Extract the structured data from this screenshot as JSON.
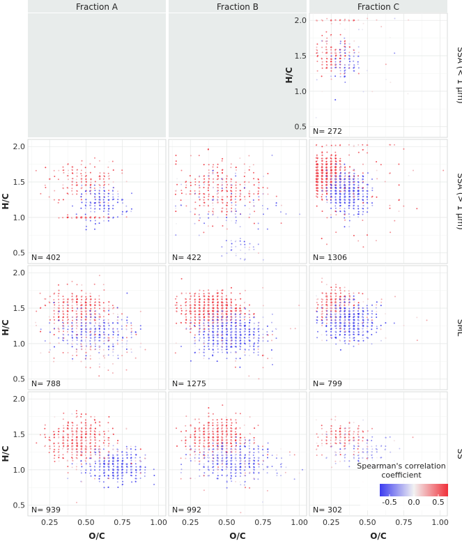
{
  "chart_data": {
    "type": "scatter",
    "title": "",
    "xlabel": "O/C",
    "ylabel": "H/C",
    "xlim": [
      0.1,
      1.05
    ],
    "ylim": [
      0.35,
      2.1
    ],
    "xticks": [
      0.25,
      0.5,
      0.75,
      1.0
    ],
    "xtick_labels": [
      "0.25",
      "0.50",
      "0.75",
      "1.00"
    ],
    "yticks": [
      0.5,
      1.0,
      1.5,
      2.0
    ],
    "ytick_labels": [
      "0.5",
      "1.0",
      "1.5",
      "2.0"
    ],
    "grid": true,
    "columns": [
      "Fraction A",
      "Fraction B",
      "Fraction C"
    ],
    "rows": [
      "SSA (< 1 µm)",
      "SSA (> 1 µm)",
      "SML",
      "SS"
    ],
    "legend": {
      "title_line1": "Spearman's correlation",
      "title_line2": "coefficient",
      "ticks": [
        -0.5,
        0.0,
        0.5
      ],
      "tick_labels": [
        "-0.5",
        "0.0",
        "0.5"
      ],
      "low_color": "#3b3bf0",
      "mid_color": "#f2f2f2",
      "high_color": "#f0303a",
      "placement": "bottom-right"
    },
    "panels": [
      {
        "row": 0,
        "col": 0,
        "empty": true
      },
      {
        "row": 0,
        "col": 1,
        "empty": true
      },
      {
        "row": 0,
        "col": 2,
        "n_label": "N= 272",
        "n": 272,
        "clusters": [
          {
            "count": 130,
            "cx": 0.26,
            "cy": 1.5,
            "sx": 0.06,
            "sy": 0.13,
            "cval": 0.5
          },
          {
            "count": 70,
            "cx": 0.34,
            "cy": 1.38,
            "sx": 0.06,
            "sy": 0.15,
            "cval": -0.45
          },
          {
            "count": 36,
            "cx": 0.42,
            "cy": 1.5,
            "sx": 0.24,
            "sy": 0.35,
            "cval": 0.1
          },
          {
            "count": 36,
            "cx": 0.3,
            "cy": 2.0,
            "sx": 0.08,
            "sy": 0.01,
            "cval": 0.35
          }
        ]
      },
      {
        "row": 1,
        "col": 0,
        "n_label": "N= 402",
        "n": 402,
        "clusters": [
          {
            "count": 190,
            "cx": 0.48,
            "cy": 1.5,
            "sx": 0.12,
            "sy": 0.15,
            "cval": 0.4
          },
          {
            "count": 150,
            "cx": 0.6,
            "cy": 1.2,
            "sx": 0.08,
            "sy": 0.12,
            "cval": -0.5
          },
          {
            "count": 62,
            "cx": 0.5,
            "cy": 1.0,
            "sx": 0.1,
            "sy": 0.01,
            "cval": 0.5
          }
        ]
      },
      {
        "row": 1,
        "col": 1,
        "n_label": "N= 422",
        "n": 422,
        "clusters": [
          {
            "count": 300,
            "cx": 0.45,
            "cy": 1.4,
            "sx": 0.15,
            "sy": 0.22,
            "cval": 0.5
          },
          {
            "count": 90,
            "cx": 0.5,
            "cy": 1.2,
            "sx": 0.2,
            "sy": 0.25,
            "cval": -0.35
          },
          {
            "count": 32,
            "cx": 0.6,
            "cy": 0.55,
            "sx": 0.07,
            "sy": 0.12,
            "cval": -0.3
          }
        ]
      },
      {
        "row": 1,
        "col": 2,
        "n_label": "N= 1306",
        "n": 1306,
        "clusters": [
          {
            "count": 700,
            "cx": 0.22,
            "cy": 1.6,
            "sx": 0.06,
            "sy": 0.12,
            "cval": 0.6
          },
          {
            "count": 500,
            "cx": 0.37,
            "cy": 1.35,
            "sx": 0.07,
            "sy": 0.14,
            "cval": -0.55
          },
          {
            "count": 106,
            "cx": 0.4,
            "cy": 1.5,
            "sx": 0.2,
            "sy": 0.45,
            "cval": 0.45
          }
        ]
      },
      {
        "row": 2,
        "col": 0,
        "n_label": "N= 788",
        "n": 788,
        "clusters": [
          {
            "count": 380,
            "cx": 0.45,
            "cy": 1.45,
            "sx": 0.12,
            "sy": 0.16,
            "cval": 0.45
          },
          {
            "count": 300,
            "cx": 0.55,
            "cy": 1.15,
            "sx": 0.12,
            "sy": 0.13,
            "cval": -0.45
          },
          {
            "count": 108,
            "cx": 0.6,
            "cy": 1.0,
            "sx": 0.15,
            "sy": 0.2,
            "cval": 0.2
          }
        ]
      },
      {
        "row": 2,
        "col": 1,
        "n_label": "N= 1275",
        "n": 1275,
        "clusters": [
          {
            "count": 650,
            "cx": 0.4,
            "cy": 1.47,
            "sx": 0.1,
            "sy": 0.12,
            "cval": 0.55
          },
          {
            "count": 560,
            "cx": 0.52,
            "cy": 1.12,
            "sx": 0.12,
            "sy": 0.14,
            "cval": -0.5
          },
          {
            "count": 65,
            "cx": 0.55,
            "cy": 1.2,
            "sx": 0.2,
            "sy": 0.3,
            "cval": 0.3
          }
        ]
      },
      {
        "row": 2,
        "col": 2,
        "n_label": "N= 799",
        "n": 799,
        "clusters": [
          {
            "count": 300,
            "cx": 0.28,
            "cy": 1.55,
            "sx": 0.07,
            "sy": 0.12,
            "cval": 0.45
          },
          {
            "count": 460,
            "cx": 0.38,
            "cy": 1.3,
            "sx": 0.09,
            "sy": 0.13,
            "cval": -0.55
          },
          {
            "count": 39,
            "cx": 0.5,
            "cy": 1.35,
            "sx": 0.2,
            "sy": 0.2,
            "cval": 0.2
          }
        ]
      },
      {
        "row": 3,
        "col": 0,
        "n_label": "N= 939",
        "n": 939,
        "clusters": [
          {
            "count": 480,
            "cx": 0.45,
            "cy": 1.42,
            "sx": 0.1,
            "sy": 0.15,
            "cval": 0.45
          },
          {
            "count": 400,
            "cx": 0.7,
            "cy": 1.05,
            "sx": 0.1,
            "sy": 0.12,
            "cval": -0.5
          },
          {
            "count": 59,
            "cx": 0.55,
            "cy": 1.2,
            "sx": 0.2,
            "sy": 0.25,
            "cval": 0.25
          }
        ]
      },
      {
        "row": 3,
        "col": 1,
        "n_label": "N= 992",
        "n": 992,
        "clusters": [
          {
            "count": 520,
            "cx": 0.43,
            "cy": 1.45,
            "sx": 0.1,
            "sy": 0.13,
            "cval": 0.5
          },
          {
            "count": 400,
            "cx": 0.55,
            "cy": 1.12,
            "sx": 0.13,
            "sy": 0.13,
            "cval": -0.45
          },
          {
            "count": 72,
            "cx": 0.55,
            "cy": 1.2,
            "sx": 0.2,
            "sy": 0.3,
            "cval": 0.2
          }
        ]
      },
      {
        "row": 3,
        "col": 2,
        "n_label": "N= 302",
        "n": 302,
        "clusters": [
          {
            "count": 170,
            "cx": 0.33,
            "cy": 1.45,
            "sx": 0.08,
            "sy": 0.1,
            "cval": 0.4
          },
          {
            "count": 100,
            "cx": 0.47,
            "cy": 1.25,
            "sx": 0.12,
            "sy": 0.12,
            "cval": -0.3
          },
          {
            "count": 32,
            "cx": 0.45,
            "cy": 1.3,
            "sx": 0.2,
            "sy": 0.25,
            "cval": 0.1
          }
        ]
      }
    ]
  }
}
